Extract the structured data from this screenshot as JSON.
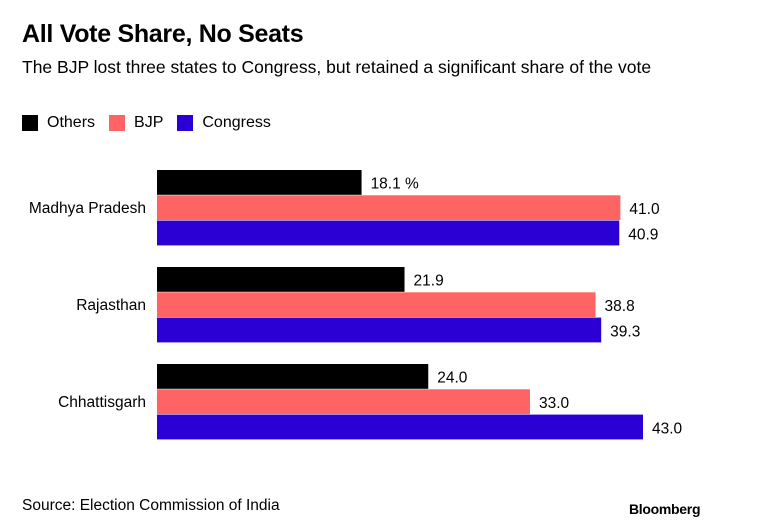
{
  "chart_data": {
    "type": "bar",
    "orientation": "horizontal",
    "title": "All Vote Share, No Seats",
    "subtitle": "The BJP lost three states to Congress, but retained a significant share of the vote",
    "categories": [
      "Madhya Pradesh",
      "Rajasthan",
      "Chhattisgarh"
    ],
    "series": [
      {
        "name": "Others",
        "color": "#000000",
        "values": [
          18.1,
          21.9,
          24.0
        ],
        "labels": [
          "18.1 %",
          "21.9",
          "24.0"
        ]
      },
      {
        "name": "BJP",
        "color": "#ff6464",
        "values": [
          41.0,
          38.8,
          33.0
        ],
        "labels": [
          "41.0",
          "38.8",
          "33.0"
        ]
      },
      {
        "name": "Congress",
        "color": "#2a00d4",
        "values": [
          40.9,
          39.3,
          43.0
        ],
        "labels": [
          "40.9",
          "39.3",
          "43.0"
        ]
      }
    ],
    "xlabel": "",
    "ylabel": "",
    "xlim": [
      0,
      43
    ],
    "grid": false,
    "legend_position": "top-left",
    "source": "Source: Election Commission of India"
  },
  "brand": "Bloomberg"
}
